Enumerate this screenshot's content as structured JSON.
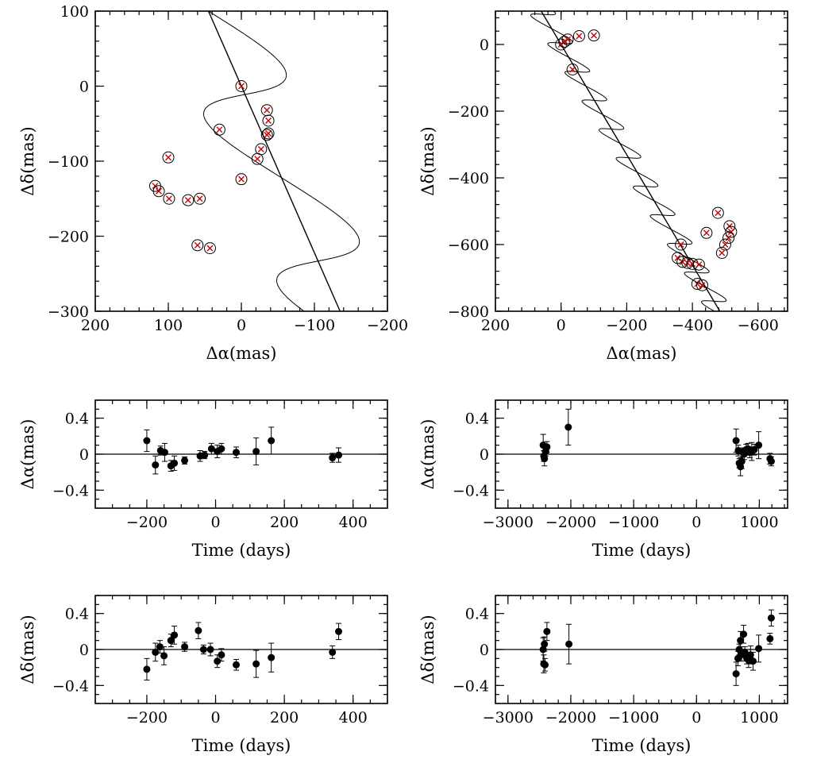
{
  "chart_data": [
    {
      "id": "astrometry-left",
      "type": "scatter",
      "title": "",
      "xlabel": "Δα(mas)",
      "ylabel": "Δδ(mas)",
      "xlim": [
        200,
        -200
      ],
      "ylim": [
        -300,
        100
      ],
      "x_ticks": [
        200,
        100,
        0,
        -100,
        -200
      ],
      "x_tick_labels": [
        "200",
        "100",
        "0",
        "−100",
        "−200"
      ],
      "y_ticks": [
        100,
        0,
        -100,
        -200,
        -300
      ],
      "y_tick_labels": [
        "100",
        "0",
        "−100",
        "−200",
        "−300"
      ],
      "x_minor_step": 20,
      "y_minor_step": 20,
      "model": {
        "proper_motion_line": {
          "x0": 0,
          "y0": 0,
          "dx_per_year": -100,
          "dy_per_year": -222
        },
        "parallax_ellipse": {
          "a": 80,
          "b": 23,
          "phase_offset": 1.5708
        },
        "t_range_years": [
          -1.2,
          1.9
        ],
        "t_offset_years": 0.3
      },
      "points": [
        {
          "x": 0,
          "y": 0
        },
        {
          "x": -35,
          "y": -32
        },
        {
          "x": -37,
          "y": -46
        },
        {
          "x": -37,
          "y": -63
        },
        {
          "x": -35,
          "y": -65
        },
        {
          "x": -27,
          "y": -84
        },
        {
          "x": -22,
          "y": -97
        },
        {
          "x": 0,
          "y": -124
        },
        {
          "x": 30,
          "y": -58
        },
        {
          "x": 100,
          "y": -95
        },
        {
          "x": 118,
          "y": -133
        },
        {
          "x": 113,
          "y": -140
        },
        {
          "x": 99,
          "y": -150
        },
        {
          "x": 73,
          "y": -152
        },
        {
          "x": 57,
          "y": -150
        },
        {
          "x": 60,
          "y": -212
        },
        {
          "x": 43,
          "y": -216
        }
      ]
    },
    {
      "id": "astrometry-right",
      "type": "scatter",
      "title": "",
      "xlabel": "Δα(mas)",
      "ylabel": "Δδ(mas)",
      "xlim": [
        200,
        -690
      ],
      "ylim": [
        -800,
        100
      ],
      "x_ticks": [
        200,
        0,
        -200,
        -400,
        -600
      ],
      "x_tick_labels": [
        "200",
        "0",
        "−200",
        "−400",
        "−600"
      ],
      "y_ticks": [
        0,
        -200,
        -400,
        -600,
        -800
      ],
      "y_tick_labels": [
        "0",
        "−200",
        "−400",
        "−600",
        "−800"
      ],
      "x_minor_step": 40,
      "y_minor_step": 40,
      "model": {
        "proper_motion_line": {
          "x0": 0,
          "y0": 0,
          "dx_per_year": -52,
          "dy_per_year": -86
        },
        "parallax_ellipse": {
          "a": 50,
          "b": 17,
          "phase_offset": 1.5708
        },
        "t_range_years": [
          -2.0,
          9.4
        ],
        "t_offset_years": 0.2
      },
      "points": [
        {
          "x": 0,
          "y": 0
        },
        {
          "x": -10,
          "y": 8
        },
        {
          "x": -20,
          "y": 15
        },
        {
          "x": -55,
          "y": 25
        },
        {
          "x": -100,
          "y": 27
        },
        {
          "x": -35,
          "y": -75
        },
        {
          "x": -478,
          "y": -505
        },
        {
          "x": -443,
          "y": -565
        },
        {
          "x": -513,
          "y": -545
        },
        {
          "x": -518,
          "y": -562
        },
        {
          "x": -510,
          "y": -580
        },
        {
          "x": -500,
          "y": -600
        },
        {
          "x": -490,
          "y": -625
        },
        {
          "x": -365,
          "y": -600
        },
        {
          "x": -355,
          "y": -640
        },
        {
          "x": -370,
          "y": -652
        },
        {
          "x": -385,
          "y": -655
        },
        {
          "x": -400,
          "y": -658
        },
        {
          "x": -420,
          "y": -660
        },
        {
          "x": -415,
          "y": -718
        },
        {
          "x": -430,
          "y": -722
        }
      ]
    },
    {
      "id": "resid-ra-left",
      "type": "scatter",
      "title": "",
      "xlabel": "Time (days)",
      "ylabel": "Δα(mas)",
      "xlim": [
        -350,
        500
      ],
      "ylim": [
        -0.6,
        0.6
      ],
      "x_ticks": [
        -200,
        0,
        200,
        400
      ],
      "x_tick_labels": [
        "−200",
        "0",
        "200",
        "400"
      ],
      "y_ticks": [
        0.4,
        0,
        -0.4
      ],
      "y_tick_labels": [
        "0.4",
        "0",
        "−0.4"
      ],
      "x_minor_step": 50,
      "y_minor_step": 0.1,
      "points": [
        {
          "x": -200,
          "y": 0.15,
          "err": 0.12
        },
        {
          "x": -175,
          "y": -0.12,
          "err": 0.1
        },
        {
          "x": -160,
          "y": 0.04,
          "err": 0.05
        },
        {
          "x": -148,
          "y": 0.02,
          "err": 0.1
        },
        {
          "x": -130,
          "y": -0.13,
          "err": 0.06
        },
        {
          "x": -120,
          "y": -0.1,
          "err": 0.08
        },
        {
          "x": -90,
          "y": -0.07,
          "err": 0.04
        },
        {
          "x": -45,
          "y": -0.02,
          "err": 0.06
        },
        {
          "x": -32,
          "y": -0.01,
          "err": 0.04
        },
        {
          "x": -12,
          "y": 0.06,
          "err": 0.06
        },
        {
          "x": 5,
          "y": 0.03,
          "err": 0.07
        },
        {
          "x": 17,
          "y": 0.06,
          "err": 0.06
        },
        {
          "x": 60,
          "y": 0.02,
          "err": 0.06
        },
        {
          "x": 118,
          "y": 0.03,
          "err": 0.15
        },
        {
          "x": 162,
          "y": 0.15,
          "err": 0.15
        },
        {
          "x": 340,
          "y": -0.04,
          "err": 0.05
        },
        {
          "x": 358,
          "y": -0.01,
          "err": 0.08
        }
      ]
    },
    {
      "id": "resid-ra-right",
      "type": "scatter",
      "title": "",
      "xlabel": "Time (days)",
      "ylabel": "Δα(mas)",
      "xlim": [
        -3200,
        1450
      ],
      "ylim": [
        -0.6,
        0.6
      ],
      "x_ticks": [
        -3000,
        -2000,
        -1000,
        0,
        1000
      ],
      "x_tick_labels": [
        "−3000",
        "−2000",
        "−1000",
        "0",
        "1000"
      ],
      "y_ticks": [
        0.4,
        0,
        -0.4
      ],
      "y_tick_labels": [
        "0.4",
        "0",
        "−0.4"
      ],
      "x_minor_step": 200,
      "y_minor_step": 0.1,
      "points": [
        {
          "x": -2440,
          "y": 0.1,
          "err": 0.12
        },
        {
          "x": -2430,
          "y": -0.02,
          "err": 0.06
        },
        {
          "x": -2420,
          "y": -0.05,
          "err": 0.08
        },
        {
          "x": -2400,
          "y": 0.03,
          "err": 0.05
        },
        {
          "x": -2380,
          "y": 0.08,
          "err": 0.06
        },
        {
          "x": -2040,
          "y": 0.3,
          "err": 0.2
        },
        {
          "x": 630,
          "y": 0.15,
          "err": 0.13
        },
        {
          "x": 665,
          "y": 0.04,
          "err": 0.06
        },
        {
          "x": 680,
          "y": -0.1,
          "err": 0.05
        },
        {
          "x": 700,
          "y": -0.14,
          "err": 0.1
        },
        {
          "x": 720,
          "y": -0.08,
          "err": 0.08
        },
        {
          "x": 740,
          "y": 0.02,
          "err": 0.05
        },
        {
          "x": 760,
          "y": 0.0,
          "err": 0.06
        },
        {
          "x": 790,
          "y": 0.05,
          "err": 0.06
        },
        {
          "x": 820,
          "y": 0.06,
          "err": 0.06
        },
        {
          "x": 850,
          "y": 0.02,
          "err": 0.06
        },
        {
          "x": 880,
          "y": 0.03,
          "err": 0.1
        },
        {
          "x": 920,
          "y": 0.05,
          "err": 0.06
        },
        {
          "x": 990,
          "y": 0.1,
          "err": 0.15
        },
        {
          "x": 1170,
          "y": -0.05,
          "err": 0.06
        },
        {
          "x": 1190,
          "y": -0.08,
          "err": 0.05
        }
      ]
    },
    {
      "id": "resid-dec-left",
      "type": "scatter",
      "title": "",
      "xlabel": "Time (days)",
      "ylabel": "Δδ(mas)",
      "xlim": [
        -350,
        500
      ],
      "ylim": [
        -0.6,
        0.6
      ],
      "x_ticks": [
        -200,
        0,
        200,
        400
      ],
      "x_tick_labels": [
        "−200",
        "0",
        "200",
        "400"
      ],
      "y_ticks": [
        0.4,
        0,
        -0.4
      ],
      "y_tick_labels": [
        "0.4",
        "0",
        "−0.4"
      ],
      "x_minor_step": 50,
      "y_minor_step": 0.1,
      "points": [
        {
          "x": -200,
          "y": -0.22,
          "err": 0.12
        },
        {
          "x": -175,
          "y": -0.03,
          "err": 0.1
        },
        {
          "x": -162,
          "y": 0.03,
          "err": 0.07
        },
        {
          "x": -150,
          "y": -0.07,
          "err": 0.1
        },
        {
          "x": -130,
          "y": 0.1,
          "err": 0.07
        },
        {
          "x": -120,
          "y": 0.16,
          "err": 0.1
        },
        {
          "x": -90,
          "y": 0.03,
          "err": 0.05
        },
        {
          "x": -50,
          "y": 0.21,
          "err": 0.09
        },
        {
          "x": -35,
          "y": 0.0,
          "err": 0.05
        },
        {
          "x": -15,
          "y": 0.0,
          "err": 0.07
        },
        {
          "x": 5,
          "y": -0.13,
          "err": 0.07
        },
        {
          "x": 17,
          "y": -0.06,
          "err": 0.07
        },
        {
          "x": 60,
          "y": -0.17,
          "err": 0.06
        },
        {
          "x": 118,
          "y": -0.16,
          "err": 0.15
        },
        {
          "x": 162,
          "y": -0.09,
          "err": 0.16
        },
        {
          "x": 340,
          "y": -0.03,
          "err": 0.07
        },
        {
          "x": 358,
          "y": 0.2,
          "err": 0.09
        }
      ]
    },
    {
      "id": "resid-dec-right",
      "type": "scatter",
      "title": "",
      "xlabel": "Time (days)",
      "ylabel": "Δδ(mas)",
      "xlim": [
        -3200,
        1450
      ],
      "ylim": [
        -0.6,
        0.6
      ],
      "x_ticks": [
        -3000,
        -2000,
        -1000,
        0,
        1000
      ],
      "x_tick_labels": [
        "−3000",
        "−2000",
        "−1000",
        "0",
        "1000"
      ],
      "y_ticks": [
        0.4,
        0,
        -0.4
      ],
      "y_tick_labels": [
        "0.4",
        "0",
        "−0.4"
      ],
      "x_minor_step": 200,
      "y_minor_step": 0.1,
      "points": [
        {
          "x": -2440,
          "y": 0.0,
          "err": 0.13
        },
        {
          "x": -2430,
          "y": -0.16,
          "err": 0.1
        },
        {
          "x": -2410,
          "y": -0.17,
          "err": 0.07
        },
        {
          "x": -2420,
          "y": 0.06,
          "err": 0.08
        },
        {
          "x": -2380,
          "y": 0.2,
          "err": 0.1
        },
        {
          "x": -2030,
          "y": 0.06,
          "err": 0.22
        },
        {
          "x": 630,
          "y": -0.27,
          "err": 0.13
        },
        {
          "x": 660,
          "y": -0.1,
          "err": 0.08
        },
        {
          "x": 680,
          "y": 0.0,
          "err": 0.06
        },
        {
          "x": 700,
          "y": 0.1,
          "err": 0.1
        },
        {
          "x": 720,
          "y": -0.05,
          "err": 0.08
        },
        {
          "x": 750,
          "y": 0.17,
          "err": 0.1
        },
        {
          "x": 770,
          "y": -0.03,
          "err": 0.06
        },
        {
          "x": 800,
          "y": -0.1,
          "err": 0.06
        },
        {
          "x": 830,
          "y": -0.12,
          "err": 0.08
        },
        {
          "x": 860,
          "y": -0.06,
          "err": 0.1
        },
        {
          "x": 900,
          "y": -0.13,
          "err": 0.1
        },
        {
          "x": 990,
          "y": 0.01,
          "err": 0.15
        },
        {
          "x": 1170,
          "y": 0.12,
          "err": 0.06
        },
        {
          "x": 1190,
          "y": 0.35,
          "err": 0.09
        }
      ]
    }
  ]
}
